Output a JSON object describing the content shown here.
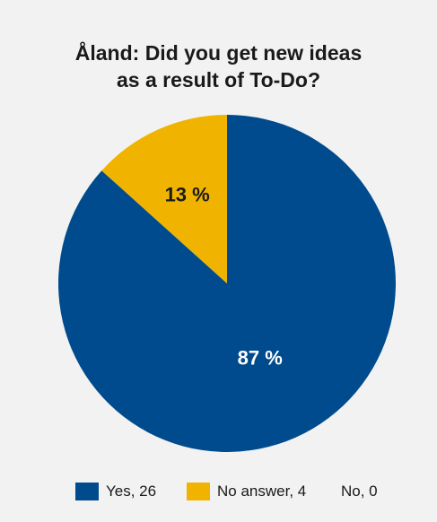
{
  "title_line1": "Åland: Did you get new ideas",
  "title_line2": "as a result of To-Do?",
  "colors": {
    "background": "#f2f2f2",
    "yes": "#004b8d",
    "no_answer": "#f0b400",
    "label_on_blue": "#ffffff",
    "label_on_yellow": "#1a1a1a"
  },
  "legend": [
    {
      "label": "Yes, 26",
      "color": "#004b8d"
    },
    {
      "label": "No answer, 4",
      "color": "#f0b400"
    },
    {
      "label": "No, 0",
      "color": null
    }
  ],
  "chart_data": {
    "type": "pie",
    "title": "Åland: Did you get new ideas as a result of To-Do?",
    "slices": [
      {
        "label": "Yes",
        "value": 26,
        "percent_label": "87 %",
        "color": "#004b8d"
      },
      {
        "label": "No answer",
        "value": 4,
        "percent_label": "13 %",
        "color": "#f0b400"
      },
      {
        "label": "No",
        "value": 0,
        "percent_label": "",
        "color": null
      }
    ],
    "legend_position": "bottom"
  }
}
